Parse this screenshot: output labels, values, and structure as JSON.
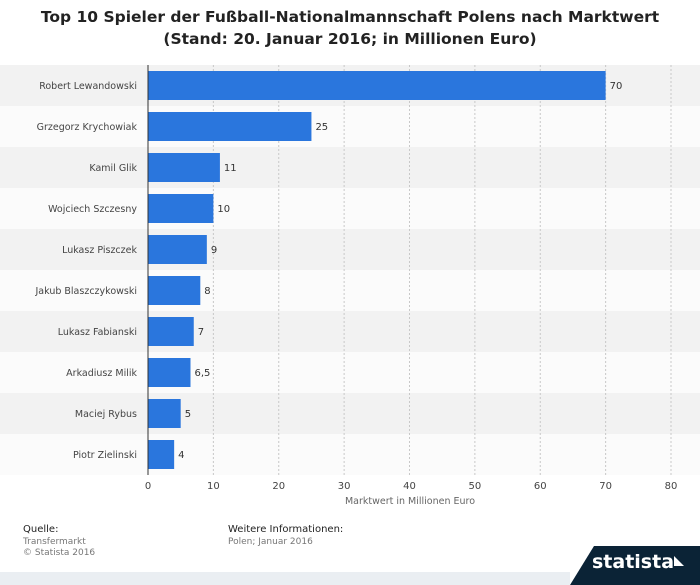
{
  "chart_data": {
    "type": "bar",
    "orientation": "horizontal",
    "title": "Top 10 Spieler der Fußball-Nationalmannschaft Polens nach Marktwert (Stand: 20. Januar 2016; in Millionen Euro)",
    "categories": [
      "Robert Lewandowski",
      "Grzegorz Krychowiak",
      "Kamil Glik",
      "Wojciech Szczesny",
      "Lukasz Piszczek",
      "Jakub Blaszczykowski",
      "Lukasz Fabianski",
      "Arkadiusz Milik",
      "Maciej Rybus",
      "Piotr Zielinski"
    ],
    "values": [
      70,
      25,
      11,
      10,
      9,
      8,
      7,
      6.5,
      5,
      4
    ],
    "value_labels": [
      "70",
      "25",
      "11",
      "10",
      "9",
      "8",
      "7",
      "6,5",
      "5",
      "4"
    ],
    "xlabel": "Marktwert in Millionen Euro",
    "xlim": [
      0,
      80
    ],
    "xticks": [
      0,
      10,
      20,
      30,
      40,
      50,
      60,
      70,
      80
    ],
    "bar_color": "#2a76dd",
    "stripe_color": "#f2f2f2",
    "grid": true
  },
  "footer": {
    "source_label": "Quelle:",
    "source_lines": [
      "Transfermarkt",
      "© Statista 2016"
    ],
    "info_label": "Weitere Informationen:",
    "info_lines": [
      "Polen; Januar 2016"
    ],
    "brand": "statista"
  }
}
